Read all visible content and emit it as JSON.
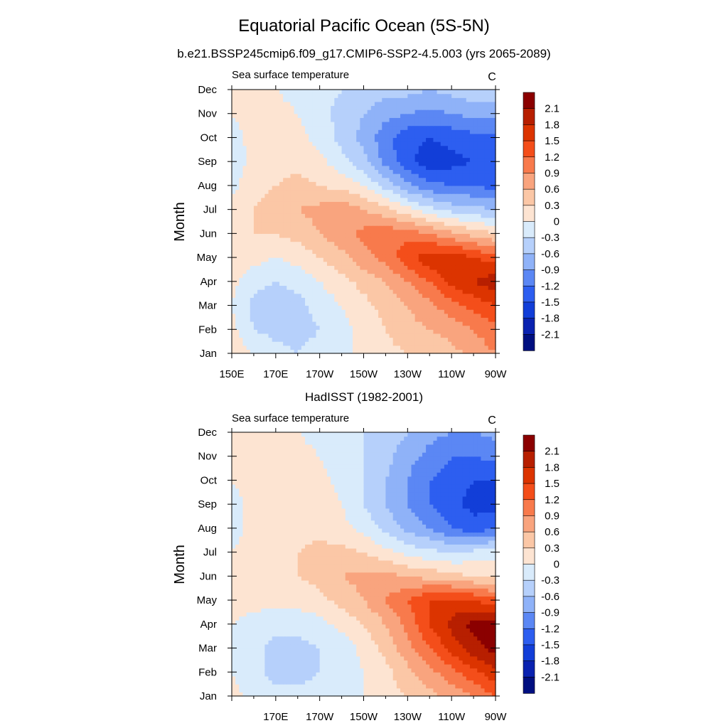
{
  "figure": {
    "title": "Equatorial Pacific Ocean (5S-5N)",
    "units_label": "C"
  },
  "chart_data": [
    {
      "type": "heatmap",
      "title": "b.e21.BSSP245cmip6.f09_g17.CMIP6-SSP2-4.5.003 (yrs 2065-2089)",
      "subtitle": "Sea surface temperature",
      "units": "C",
      "xlabel": "",
      "ylabel": "Month",
      "x_ticks": [
        "150E",
        "170E",
        "170W",
        "150W",
        "130W",
        "110W",
        "90W"
      ],
      "y_ticks": [
        "Jan",
        "Feb",
        "Mar",
        "Apr",
        "May",
        "Jun",
        "Jul",
        "Aug",
        "Sep",
        "Oct",
        "Nov",
        "Dec"
      ],
      "x": [
        "150E",
        "160E",
        "170E",
        "180",
        "170W",
        "160W",
        "150W",
        "140W",
        "130W",
        "120W",
        "110W",
        "100W",
        "90W"
      ],
      "y": [
        "Jan",
        "Feb",
        "Mar",
        "Apr",
        "May",
        "Jun",
        "Jul",
        "Aug",
        "Sep",
        "Oct",
        "Nov",
        "Dec"
      ],
      "z": [
        [
          0.2,
          0.0,
          -0.2,
          -0.3,
          -0.2,
          -0.1,
          0.1,
          0.2,
          0.3,
          0.4,
          0.5,
          0.7,
          0.9
        ],
        [
          0.1,
          -0.3,
          -0.4,
          -0.4,
          -0.3,
          -0.1,
          0.1,
          0.3,
          0.5,
          0.6,
          0.7,
          0.9,
          1.1
        ],
        [
          0.0,
          -0.4,
          -0.5,
          -0.4,
          -0.2,
          0.0,
          0.2,
          0.4,
          0.6,
          0.8,
          1.1,
          1.3,
          1.5
        ],
        [
          0.1,
          -0.2,
          -0.3,
          -0.2,
          0.0,
          0.2,
          0.4,
          0.6,
          0.9,
          1.2,
          1.6,
          1.8,
          2.0
        ],
        [
          0.2,
          0.1,
          0.0,
          0.1,
          0.3,
          0.5,
          0.8,
          1.0,
          1.4,
          1.7,
          1.7,
          1.5,
          1.4
        ],
        [
          0.3,
          0.3,
          0.3,
          0.4,
          0.6,
          0.8,
          1.0,
          1.1,
          1.1,
          0.9,
          0.7,
          0.5,
          0.3
        ],
        [
          0.1,
          0.3,
          0.4,
          0.6,
          0.7,
          0.8,
          0.6,
          0.4,
          0.1,
          -0.2,
          -0.4,
          -0.5,
          -0.6
        ],
        [
          -0.1,
          0.2,
          0.3,
          0.4,
          0.3,
          0.2,
          0.0,
          -0.4,
          -0.8,
          -1.1,
          -1.2,
          -1.2,
          -1.3
        ],
        [
          -0.2,
          0.1,
          0.2,
          0.2,
          0.1,
          -0.2,
          -0.5,
          -1.0,
          -1.4,
          -1.7,
          -1.6,
          -1.5,
          -1.5
        ],
        [
          -0.1,
          0.1,
          0.2,
          0.1,
          -0.1,
          -0.4,
          -0.7,
          -1.1,
          -1.4,
          -1.5,
          -1.4,
          -1.3,
          -1.3
        ],
        [
          0.0,
          0.1,
          0.1,
          0.0,
          -0.2,
          -0.4,
          -0.6,
          -0.8,
          -0.9,
          -1.0,
          -0.9,
          -0.8,
          -0.8
        ],
        [
          0.1,
          0.0,
          0.0,
          -0.1,
          -0.2,
          -0.3,
          -0.4,
          -0.5,
          -0.5,
          -0.6,
          -0.5,
          -0.4,
          -0.4
        ]
      ],
      "levels": [
        -2.1,
        -1.8,
        -1.5,
        -1.2,
        -0.9,
        -0.6,
        -0.3,
        0,
        0.3,
        0.6,
        0.9,
        1.2,
        1.5,
        1.8,
        2.1
      ]
    },
    {
      "type": "heatmap",
      "title": "HadISST (1982-2001)",
      "subtitle": "Sea surface temperature",
      "units": "C",
      "xlabel": "",
      "ylabel": "Month",
      "x_ticks": [
        "170E",
        "170W",
        "150W",
        "130W",
        "110W",
        "90W"
      ],
      "y_ticks": [
        "Jan",
        "Feb",
        "Mar",
        "Apr",
        "May",
        "Jun",
        "Jul",
        "Aug",
        "Sep",
        "Oct",
        "Nov",
        "Dec"
      ],
      "x": [
        "150E",
        "160E",
        "170E",
        "180",
        "170W",
        "160W",
        "150W",
        "140W",
        "130W",
        "120W",
        "110W",
        "100W",
        "90W"
      ],
      "y": [
        "Jan",
        "Feb",
        "Mar",
        "Apr",
        "May",
        "Jun",
        "Jul",
        "Aug",
        "Sep",
        "Oct",
        "Nov",
        "Dec"
      ],
      "z": [
        [
          0.1,
          -0.1,
          -0.2,
          -0.2,
          -0.2,
          -0.1,
          0.0,
          0.2,
          0.3,
          0.5,
          0.7,
          0.9,
          1.2
        ],
        [
          0.0,
          -0.2,
          -0.4,
          -0.4,
          -0.3,
          -0.2,
          0.0,
          0.2,
          0.5,
          0.8,
          1.1,
          1.4,
          1.7
        ],
        [
          -0.1,
          -0.2,
          -0.4,
          -0.4,
          -0.3,
          -0.2,
          0.1,
          0.4,
          0.8,
          1.2,
          1.6,
          2.0,
          2.2
        ],
        [
          0.0,
          -0.1,
          -0.2,
          -0.2,
          -0.1,
          0.1,
          0.3,
          0.6,
          1.0,
          1.5,
          1.9,
          2.2,
          2.2
        ],
        [
          0.1,
          0.1,
          0.1,
          0.1,
          0.2,
          0.4,
          0.6,
          0.9,
          1.2,
          1.5,
          1.6,
          1.5,
          1.3
        ],
        [
          0.1,
          0.2,
          0.2,
          0.3,
          0.4,
          0.6,
          0.7,
          0.7,
          0.6,
          0.5,
          0.4,
          0.3,
          0.2
        ],
        [
          0.0,
          0.1,
          0.2,
          0.3,
          0.4,
          0.4,
          0.3,
          0.1,
          -0.1,
          -0.2,
          -0.3,
          -0.2,
          -0.1
        ],
        [
          -0.1,
          0.1,
          0.2,
          0.2,
          0.2,
          0.1,
          -0.1,
          -0.4,
          -0.7,
          -0.9,
          -1.2,
          -1.4,
          -1.2
        ],
        [
          -0.1,
          0.1,
          0.2,
          0.3,
          0.2,
          0.0,
          -0.3,
          -0.6,
          -0.9,
          -1.2,
          -1.4,
          -1.6,
          -1.6
        ],
        [
          0.0,
          0.1,
          0.1,
          0.2,
          0.1,
          -0.1,
          -0.3,
          -0.6,
          -0.9,
          -1.2,
          -1.4,
          -1.5,
          -1.5
        ],
        [
          0.0,
          0.1,
          0.1,
          0.1,
          0.0,
          -0.2,
          -0.3,
          -0.5,
          -0.8,
          -1.0,
          -1.2,
          -1.2,
          -1.1
        ],
        [
          0.1,
          0.1,
          0.1,
          0.0,
          -0.1,
          -0.2,
          -0.3,
          -0.4,
          -0.6,
          -0.8,
          -0.9,
          -0.9,
          -0.8
        ]
      ],
      "levels": [
        -2.1,
        -1.8,
        -1.5,
        -1.2,
        -0.9,
        -0.6,
        -0.3,
        0,
        0.3,
        0.6,
        0.9,
        1.2,
        1.5,
        1.8,
        2.1
      ]
    }
  ],
  "colorbar": {
    "labels": [
      "2.1",
      "1.8",
      "1.5",
      "1.2",
      "0.9",
      "0.6",
      "0.3",
      "0",
      "-0.3",
      "-0.6",
      "-0.9",
      "-1.2",
      "-1.5",
      "-1.8",
      "-2.1"
    ],
    "colors": [
      "#8b0000",
      "#b71f00",
      "#dc3400",
      "#f44e1a",
      "#f87a4c",
      "#f9a47e",
      "#fbc7a6",
      "#fde4d2",
      "#d9ebfb",
      "#b6d0fb",
      "#8fb2f8",
      "#5b87f4",
      "#2d5ef0",
      "#123ed8",
      "#0a22b0",
      "#000f80"
    ]
  }
}
